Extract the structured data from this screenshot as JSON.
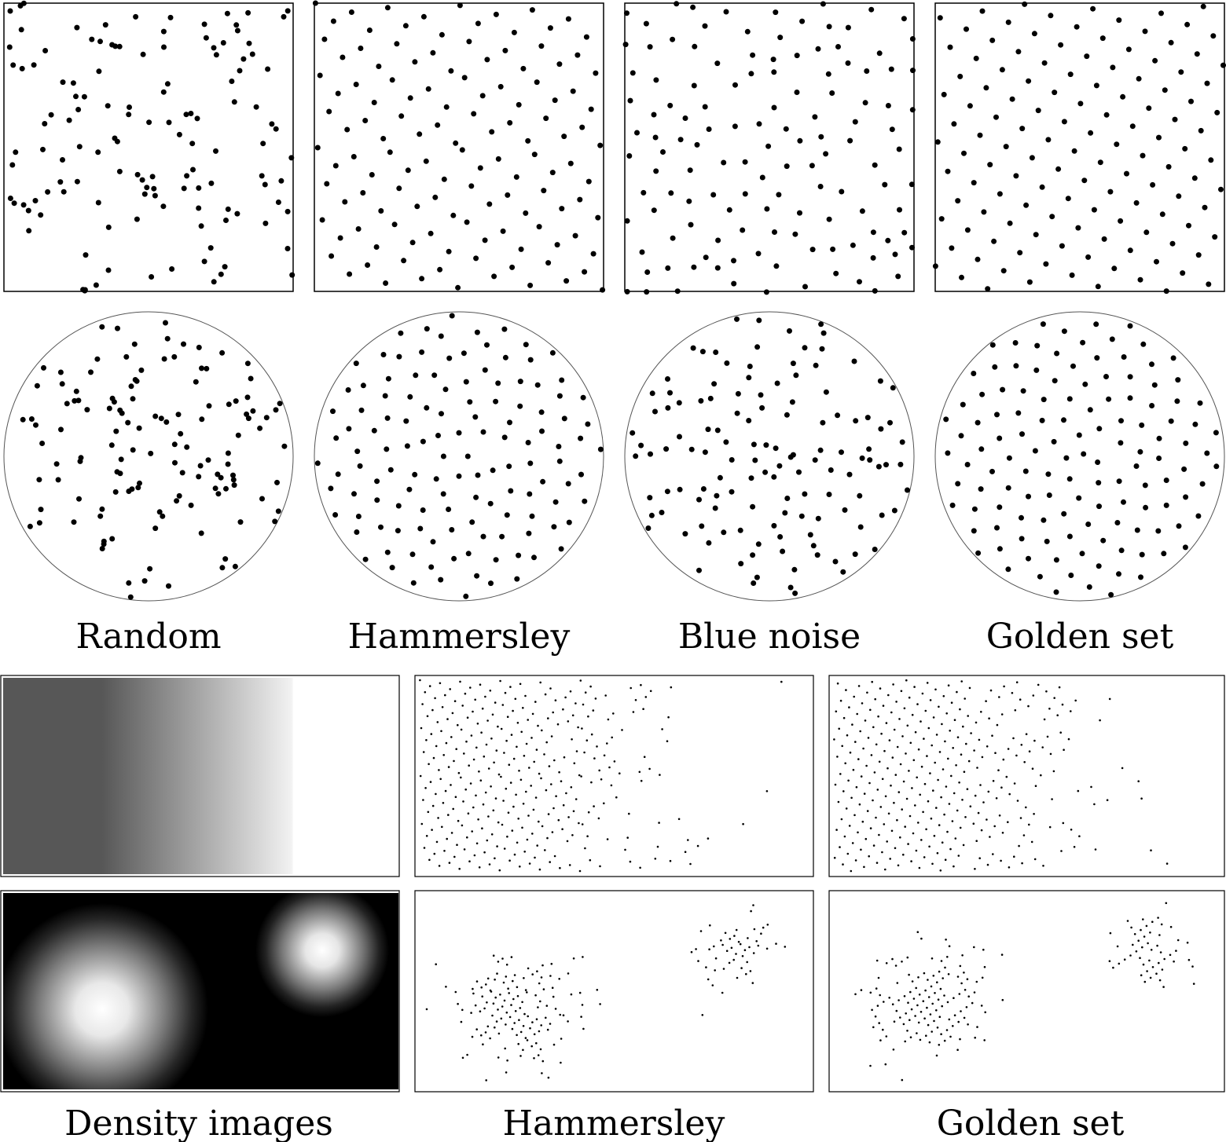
{
  "captions": {
    "random": "Random",
    "hammersley_top": "Hammersley",
    "blue_noise": "Blue noise",
    "golden_top": "Golden set",
    "density_images": "Density images",
    "hammersley_bottom": "Hammersley",
    "golden_bottom": "Golden set"
  },
  "colors": {
    "background": "#ffffff",
    "points": "#000000",
    "frame": "#000000",
    "circle_outline": "#555555",
    "ramp_dark": "#575757",
    "density_background": "#000000"
  }
}
